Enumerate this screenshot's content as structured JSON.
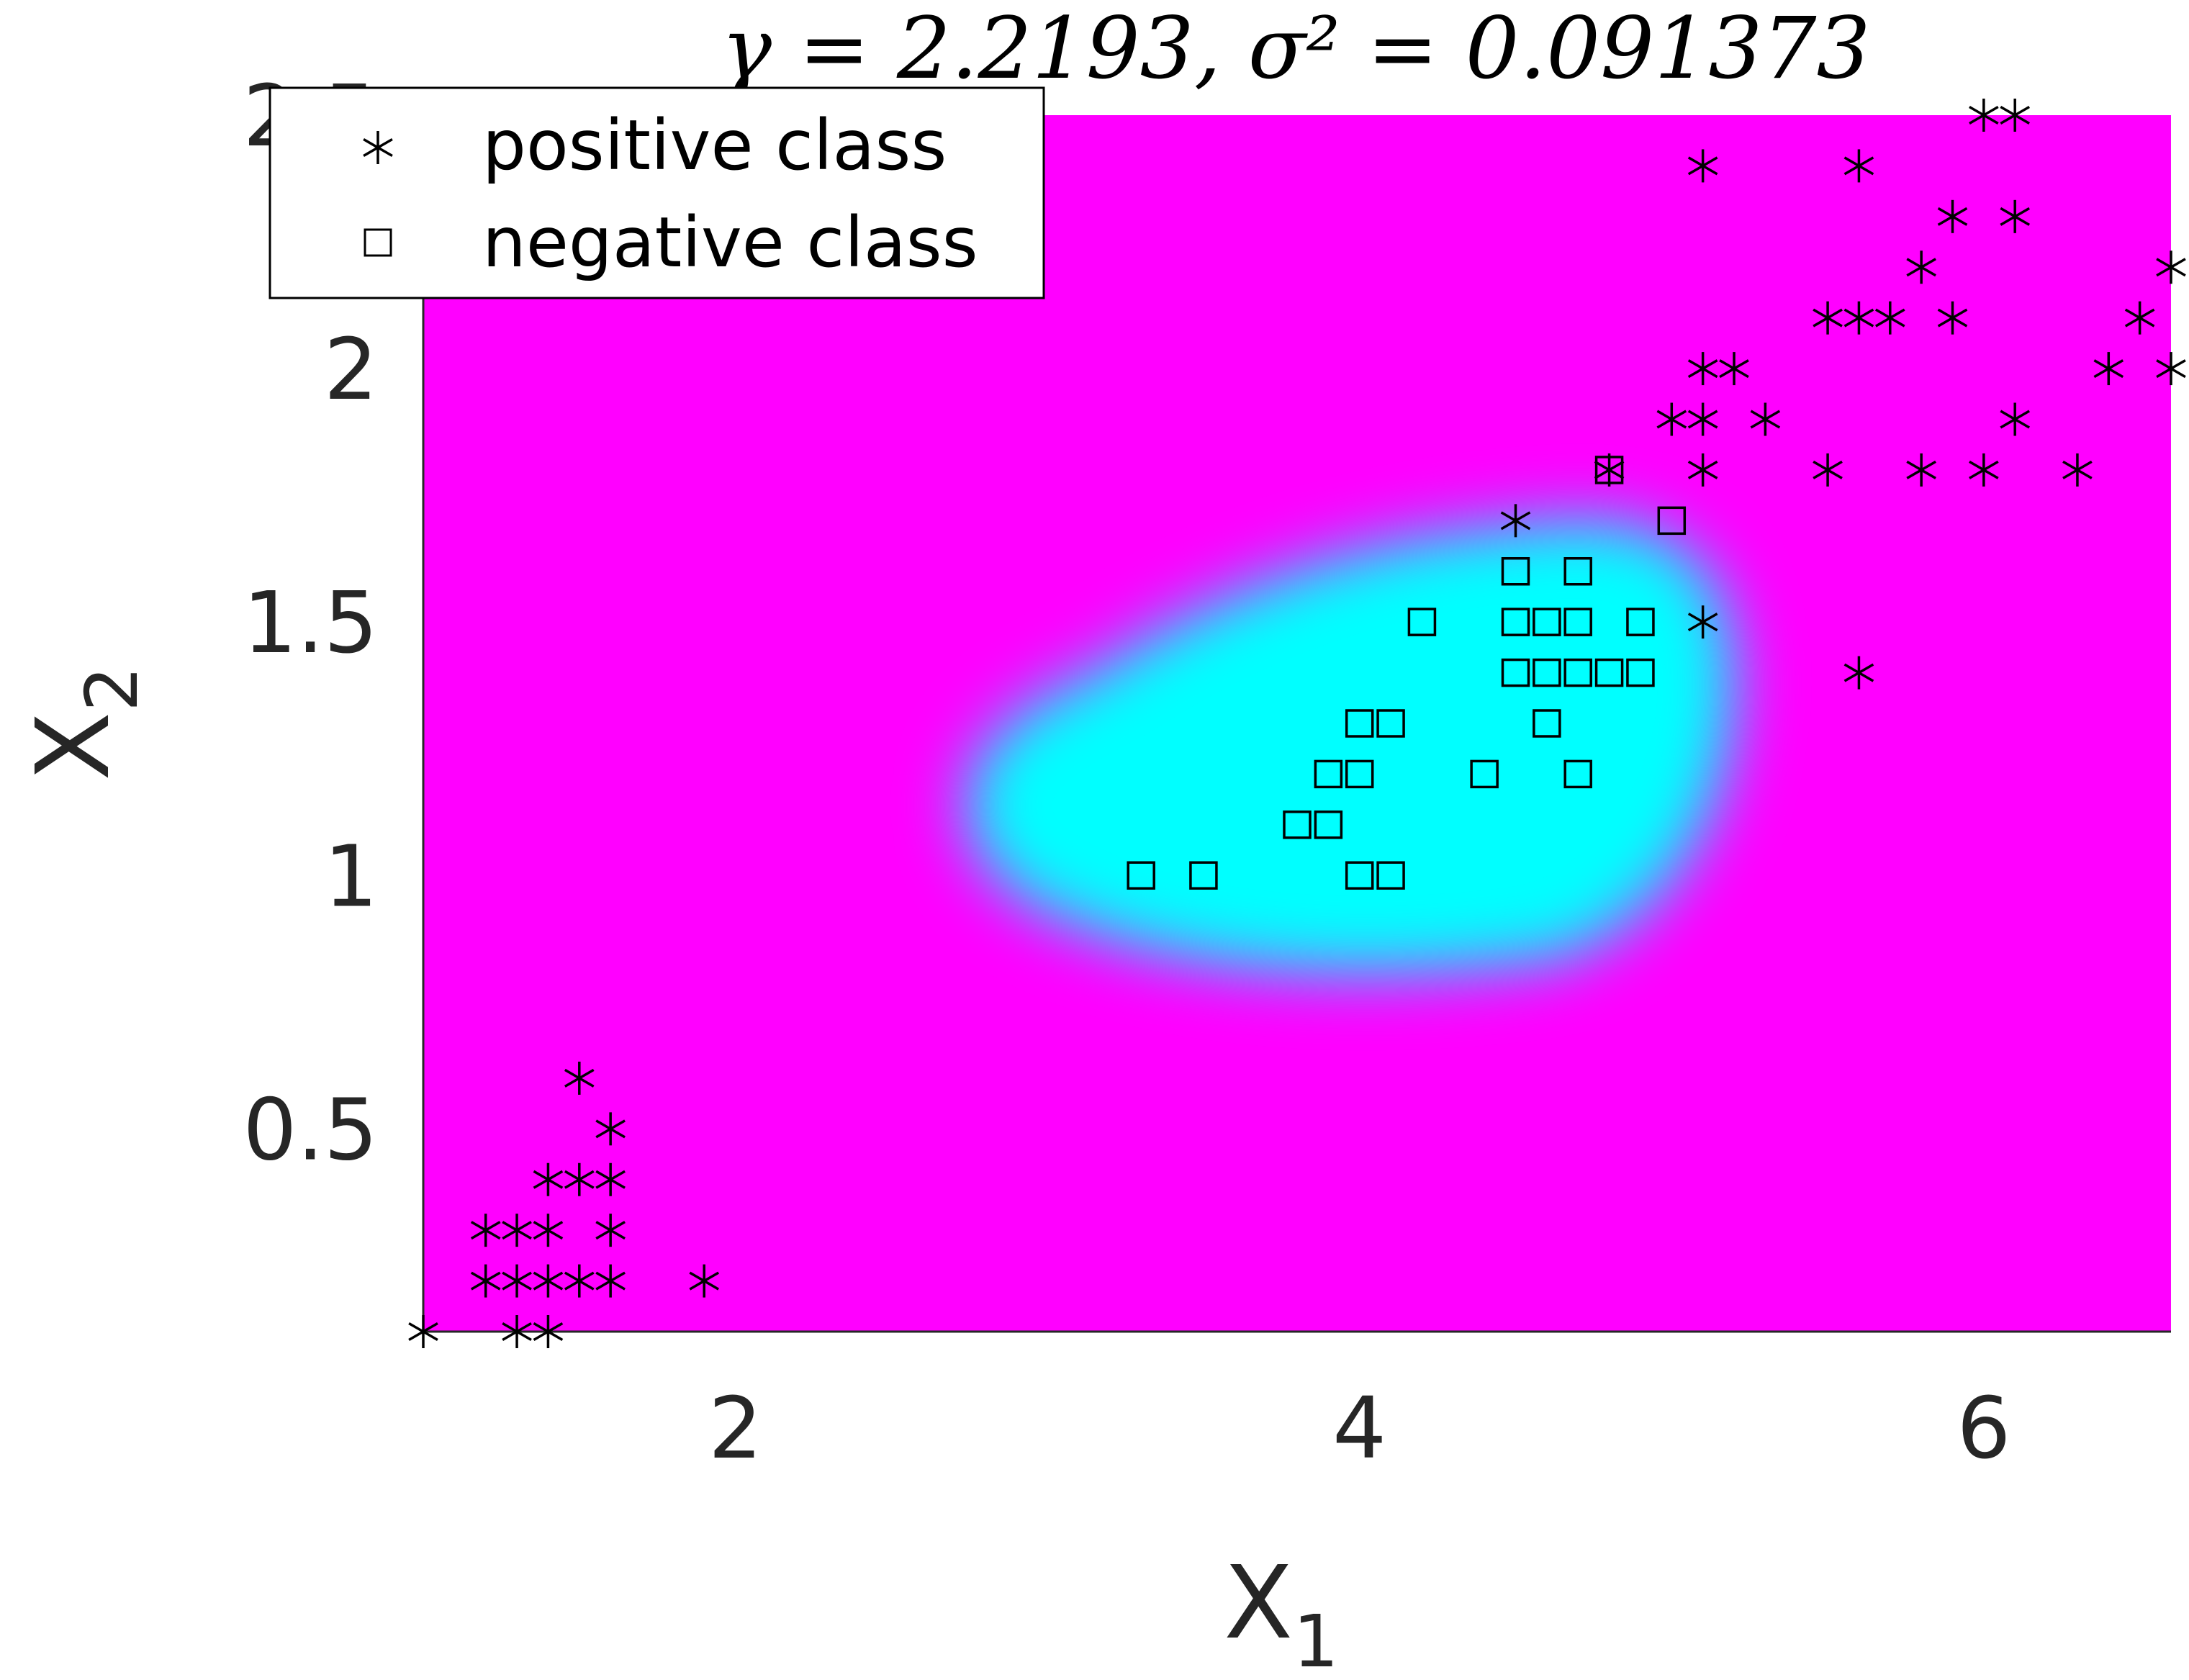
{
  "chart_data": {
    "type": "scatter",
    "title": "γ = 2.2193, σ² = 0.091373",
    "xlabel": "X",
    "xlabel_sub": "1",
    "ylabel": "X",
    "ylabel_sub": "2",
    "xlim": [
      1.0,
      6.6
    ],
    "ylim": [
      0.1,
      2.5
    ],
    "xticks": [
      2,
      4,
      6
    ],
    "xtick_labels": [
      "2",
      "4",
      "6"
    ],
    "yticks": [
      0.5,
      1,
      1.5,
      2,
      2.5
    ],
    "ytick_labels": [
      "0.5",
      "1",
      "1.5",
      "2",
      "2.5"
    ],
    "grid": false,
    "legend_position": "top-left",
    "colors": {
      "background_region": "#ff00ff",
      "decision_region": "#00ffff",
      "markers": "#000000"
    },
    "decision_region": {
      "x_range": [
        2.7,
        5.2
      ],
      "y_range": [
        0.8,
        1.7
      ]
    },
    "series": [
      {
        "name": "positive class",
        "marker": "asterisk",
        "points": [
          [
            1.0,
            0.1
          ],
          [
            1.3,
            0.1
          ],
          [
            1.4,
            0.1
          ],
          [
            1.2,
            0.2
          ],
          [
            1.3,
            0.2
          ],
          [
            1.4,
            0.2
          ],
          [
            1.5,
            0.2
          ],
          [
            1.6,
            0.2
          ],
          [
            1.9,
            0.2
          ],
          [
            1.2,
            0.3
          ],
          [
            1.3,
            0.3
          ],
          [
            1.4,
            0.3
          ],
          [
            1.6,
            0.3
          ],
          [
            1.4,
            0.4
          ],
          [
            1.5,
            0.4
          ],
          [
            1.6,
            0.4
          ],
          [
            1.6,
            0.5
          ],
          [
            1.5,
            0.6
          ],
          [
            4.5,
            1.7
          ],
          [
            4.8,
            1.8
          ],
          [
            5.1,
            1.5
          ],
          [
            5.6,
            1.4
          ],
          [
            5.0,
            1.9
          ],
          [
            5.1,
            1.9
          ],
          [
            5.3,
            1.9
          ],
          [
            5.1,
            1.8
          ],
          [
            5.5,
            1.8
          ],
          [
            5.8,
            1.8
          ],
          [
            6.0,
            1.8
          ],
          [
            6.3,
            1.8
          ],
          [
            5.1,
            2.0
          ],
          [
            5.2,
            2.0
          ],
          [
            6.4,
            2.0
          ],
          [
            6.6,
            2.0
          ],
          [
            5.5,
            2.1
          ],
          [
            5.6,
            2.1
          ],
          [
            5.7,
            2.1
          ],
          [
            5.9,
            2.1
          ],
          [
            6.5,
            2.1
          ],
          [
            5.8,
            2.2
          ],
          [
            6.6,
            2.2
          ],
          [
            5.9,
            2.3
          ],
          [
            6.1,
            2.3
          ],
          [
            5.1,
            2.4
          ],
          [
            5.6,
            2.4
          ],
          [
            6.0,
            2.5
          ],
          [
            6.1,
            2.5
          ],
          [
            6.1,
            1.9
          ]
        ]
      },
      {
        "name": "negative class",
        "marker": "square",
        "points": [
          [
            3.3,
            1.0
          ],
          [
            3.5,
            1.0
          ],
          [
            4.0,
            1.0
          ],
          [
            4.1,
            1.0
          ],
          [
            3.8,
            1.1
          ],
          [
            3.9,
            1.1
          ],
          [
            3.9,
            1.2
          ],
          [
            4.0,
            1.2
          ],
          [
            4.4,
            1.2
          ],
          [
            4.7,
            1.2
          ],
          [
            4.0,
            1.3
          ],
          [
            4.1,
            1.3
          ],
          [
            4.6,
            1.3
          ],
          [
            4.5,
            1.4
          ],
          [
            4.6,
            1.4
          ],
          [
            4.7,
            1.4
          ],
          [
            4.8,
            1.4
          ],
          [
            4.9,
            1.4
          ],
          [
            4.2,
            1.5
          ],
          [
            4.5,
            1.5
          ],
          [
            4.6,
            1.5
          ],
          [
            4.7,
            1.5
          ],
          [
            4.9,
            1.5
          ],
          [
            4.5,
            1.6
          ],
          [
            4.7,
            1.6
          ],
          [
            5.0,
            1.7
          ],
          [
            4.8,
            1.8
          ]
        ]
      }
    ]
  }
}
